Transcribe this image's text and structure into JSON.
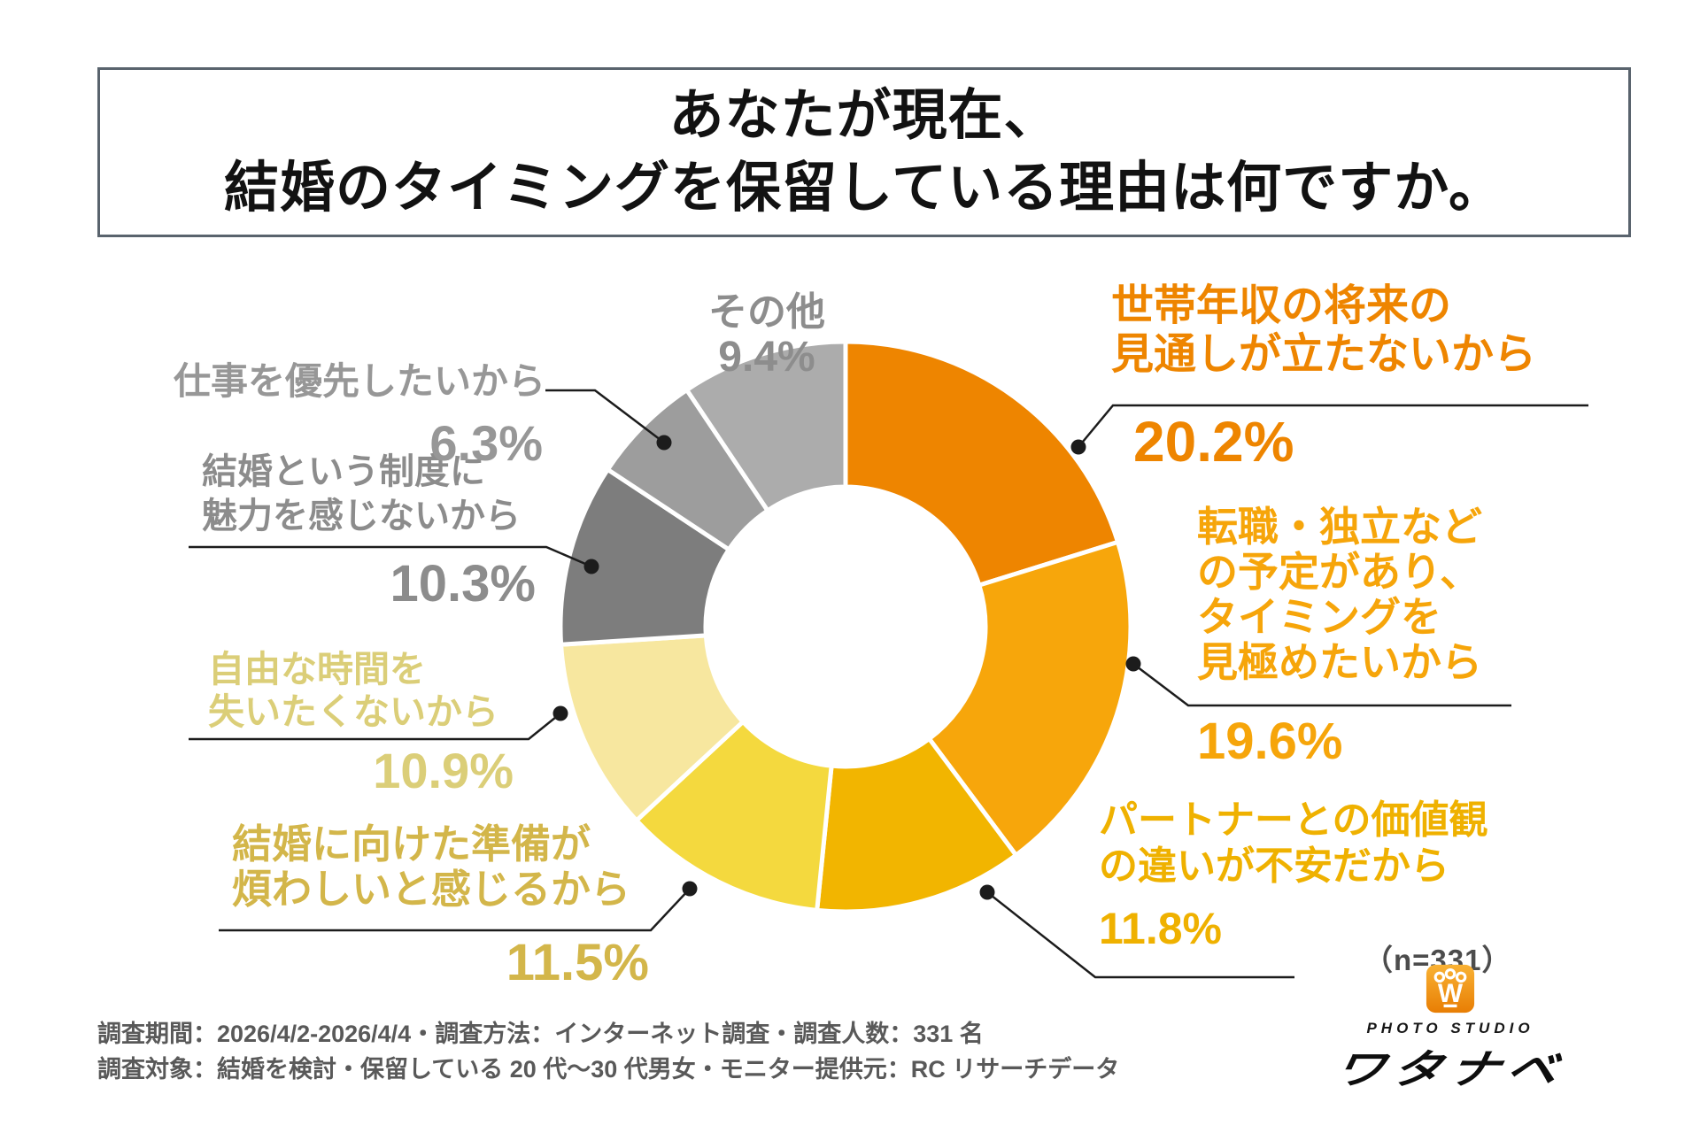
{
  "title": {
    "line1": "あなたが現在、",
    "line2": "結婚のタイミングを保留している理由は何ですか。"
  },
  "chart_data": {
    "type": "pie",
    "subtype": "donut",
    "title": "あなたが現在、結婚のタイミングを保留している理由は何ですか。",
    "unit": "%",
    "n": 331,
    "sample_note": "（n=331）",
    "direction": "clockwise",
    "start_angle_deg": 0,
    "inner_radius_ratio": 0.49,
    "legend_position": "around",
    "separator_color": "#ffffff",
    "leader_line_color": "#1c1c1c",
    "segments": [
      {
        "label": "世帯年収の将来の見通しが立たないから",
        "label_lines": [
          "世帯年収の将来の",
          "見通しが立たないから"
        ],
        "value": 20.2,
        "pct_text": "20.2%",
        "color": "#EE8500",
        "text_color": "#EE8500"
      },
      {
        "label": "転職・独立などの予定があり、タイミングを見極めたいから",
        "label_lines": [
          "転職・独立など",
          "の予定があり、",
          "タイミングを",
          "見極めたいから"
        ],
        "value": 19.6,
        "pct_text": "19.6%",
        "color": "#F7A60B",
        "text_color": "#F6A50A"
      },
      {
        "label": "パートナーとの価値観の違いが不安だから",
        "label_lines": [
          "パートナーとの価値観",
          "の違いが不安だから"
        ],
        "value": 11.8,
        "pct_text": "11.8%",
        "color": "#F2B500",
        "text_color": "#EFB100"
      },
      {
        "label": "結婚に向けた準備が煩わしいと感じるから",
        "label_lines": [
          "結婚に向けた準備が",
          "煩わしいと感じるから"
        ],
        "value": 11.5,
        "pct_text": "11.5%",
        "color": "#F4D93E",
        "text_color": "#D3B64A"
      },
      {
        "label": "自由な時間を失いたくないから",
        "label_lines": [
          "自由な時間を",
          "失いたくないから"
        ],
        "value": 10.9,
        "pct_text": "10.9%",
        "color": "#F7E79F",
        "text_color": "#DBCE78"
      },
      {
        "label": "結婚という制度に魅力を感じないから",
        "label_lines": [
          "結婚という制度に",
          "魅力を感じないから"
        ],
        "value": 10.3,
        "pct_text": "10.3%",
        "color": "#7D7D7D",
        "text_color": "#8C8C8C"
      },
      {
        "label": "仕事を優先したいから",
        "label_lines": [
          "仕事を優先したいから"
        ],
        "value": 6.3,
        "pct_text": "6.3%",
        "color": "#9D9D9D",
        "text_color": "#979797"
      },
      {
        "label": "その他",
        "label_lines": [
          "その他"
        ],
        "value": 9.4,
        "pct_text": "9.4%",
        "color": "#ACACAC",
        "text_color": "#8D8D8D"
      }
    ]
  },
  "footnote": {
    "line1": "調査期間：2026/4/2-2026/4/4・調査方法：インターネット調査・調査人数：331 名",
    "line2": "調査対象：結婚を検討・保留している 20 代～30 代男女・モニター提供元：RC リサーチデータ"
  },
  "logo": {
    "mark": "W",
    "studio": "PHOTO STUDIO",
    "name": "ワタナベ",
    "badge_color_top": "#F9B234",
    "badge_color_bottom": "#E87E04"
  }
}
